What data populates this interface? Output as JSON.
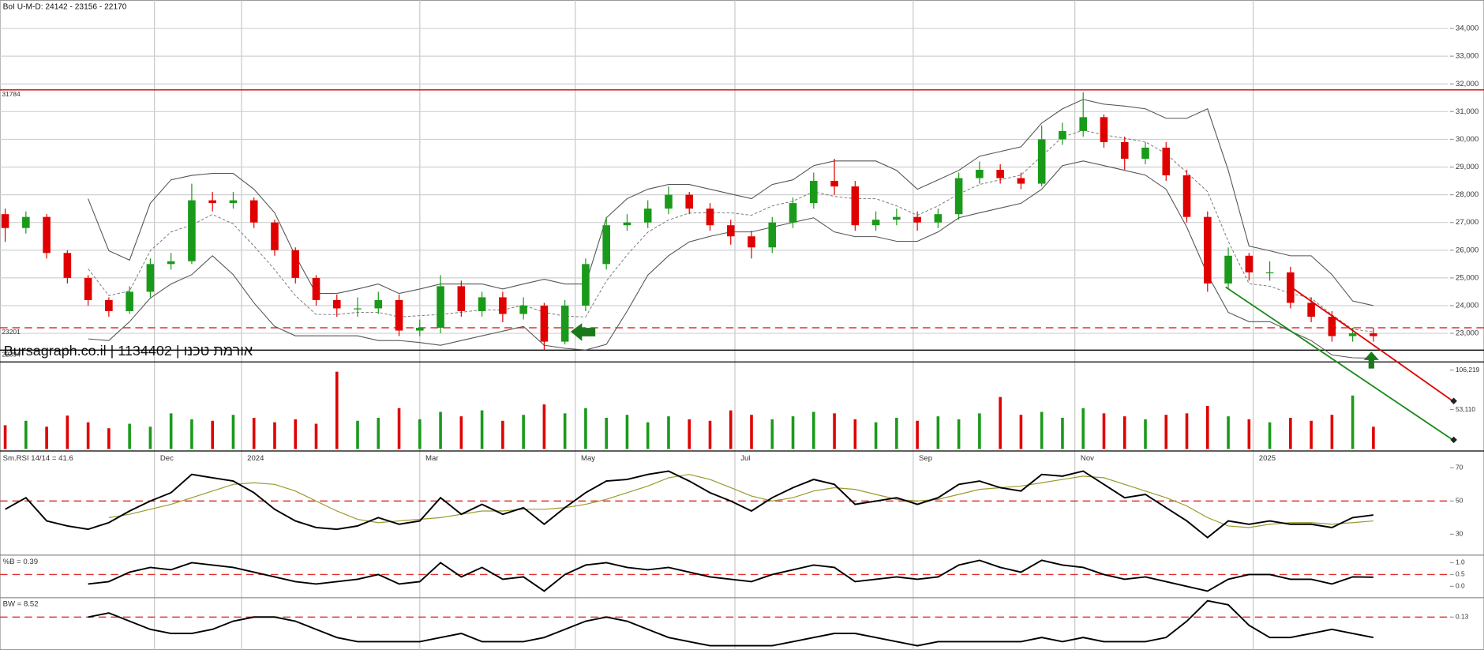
{
  "chart_data": [
    {
      "type": "candlestick",
      "title": "BoI U-M-D: 24142 - 23156 - 22170",
      "watermark": "Bursagraph.co.il | 1134402 | אורמת טכנו",
      "up_color": "#1a9a1a",
      "down_color": "#e00000",
      "open": [
        27300,
        26800,
        27200,
        25900,
        25000,
        24200,
        23800,
        24500,
        25500,
        25600,
        27800,
        27700,
        27800,
        27000,
        26000,
        25000,
        24200,
        23900,
        23900,
        24200,
        23100,
        23200,
        24700,
        23800,
        24300,
        23700,
        24000,
        22700,
        24000,
        25500,
        26900,
        27000,
        27500,
        28000,
        27500,
        26900,
        26500,
        26100,
        27000,
        27700,
        28500,
        28300,
        26900,
        27100,
        27200,
        27000,
        27300,
        28600,
        28900,
        28600,
        28400,
        30000,
        30300,
        30800,
        29900,
        29300,
        29700,
        28700,
        27200,
        24800,
        25800,
        25200,
        25200,
        24100,
        23600,
        22900,
        23000
      ],
      "high": [
        27500,
        27400,
        27300,
        26000,
        25100,
        24300,
        24700,
        25700,
        25900,
        28400,
        28100,
        28100,
        27900,
        27100,
        26100,
        25100,
        24400,
        24300,
        24500,
        24400,
        23500,
        25100,
        24900,
        24500,
        24500,
        24300,
        24100,
        24200,
        25700,
        27200,
        27300,
        27800,
        28300,
        28100,
        27700,
        27100,
        26700,
        27200,
        27900,
        28800,
        29300,
        28500,
        27400,
        27500,
        27400,
        27500,
        28800,
        29200,
        29100,
        28800,
        30500,
        30600,
        31700,
        30900,
        30100,
        29900,
        29900,
        28900,
        27400,
        26100,
        25900,
        25600,
        25400,
        24300,
        23800,
        23200,
        23200
      ],
      "low": [
        26300,
        26600,
        25700,
        24800,
        24000,
        23600,
        23700,
        24300,
        25300,
        25500,
        27400,
        27500,
        26800,
        25800,
        24800,
        24000,
        23600,
        23600,
        23700,
        22900,
        22900,
        23000,
        23600,
        23600,
        23400,
        23500,
        22400,
        22600,
        23800,
        25300,
        26700,
        26800,
        27300,
        27300,
        26700,
        26200,
        25700,
        25900,
        26800,
        27500,
        28000,
        26700,
        26700,
        26900,
        26700,
        26800,
        27100,
        28400,
        28400,
        28200,
        28300,
        29800,
        30100,
        29700,
        28900,
        29100,
        28500,
        27000,
        24500,
        24600,
        24900,
        24900,
        23900,
        23400,
        22700,
        22700,
        22700
      ],
      "close": [
        26800,
        27200,
        25900,
        25000,
        24200,
        23800,
        24500,
        25500,
        25600,
        27800,
        27700,
        27800,
        27000,
        26000,
        25000,
        24200,
        23900,
        23900,
        24200,
        23100,
        23200,
        24700,
        23800,
        24300,
        23700,
        24000,
        22700,
        24000,
        25500,
        26900,
        27000,
        27500,
        28000,
        27500,
        26900,
        26500,
        26100,
        27000,
        27700,
        28500,
        28300,
        26900,
        27100,
        27200,
        27000,
        27300,
        28600,
        28900,
        28600,
        28400,
        30000,
        30300,
        30800,
        29900,
        29300,
        29700,
        28700,
        27200,
        24800,
        25800,
        25200,
        25200,
        24100,
        23600,
        22900,
        23000,
        22900
      ],
      "bands": {
        "upper": [
          null,
          null,
          null,
          null,
          27860,
          25980,
          25640,
          27690,
          28540,
          28700,
          28770,
          28770,
          28200,
          27350,
          25800,
          24440,
          24440,
          24600,
          24780,
          24440,
          24600,
          24780,
          24780,
          24780,
          24600,
          24780,
          24950,
          24780,
          24780,
          27170,
          27860,
          28200,
          28370,
          28370,
          28200,
          28030,
          27860,
          28370,
          28540,
          29050,
          29220,
          29220,
          29220,
          28880,
          28200,
          28540,
          28880,
          29390,
          29560,
          29730,
          30590,
          31100,
          31440,
          31270,
          31200,
          31100,
          30760,
          30760,
          31100,
          28880,
          26150,
          25980,
          25800,
          25800,
          25120,
          24170,
          24000
        ],
        "middle": [
          null,
          null,
          null,
          null,
          25330,
          24360,
          24530,
          25980,
          26660,
          26910,
          27290,
          26950,
          26150,
          25300,
          24360,
          23680,
          23680,
          23760,
          23760,
          23590,
          23640,
          23680,
          23760,
          23850,
          23840,
          24020,
          23760,
          23620,
          23590,
          24890,
          25830,
          26650,
          27090,
          27340,
          27350,
          27350,
          27260,
          27600,
          27770,
          28110,
          27940,
          27860,
          27860,
          27600,
          27260,
          27600,
          28030,
          28370,
          28540,
          28710,
          29400,
          30080,
          30330,
          30160,
          30040,
          29910,
          29480,
          28800,
          28110,
          26320,
          24790,
          24700,
          24440,
          24270,
          23670,
          23150,
          23050
        ],
        "lower": [
          null,
          null,
          null,
          null,
          22800,
          22740,
          23420,
          24270,
          24780,
          25120,
          25800,
          25120,
          24100,
          23250,
          22910,
          22910,
          22910,
          22910,
          22740,
          22740,
          22670,
          22570,
          22740,
          22910,
          23080,
          23250,
          22570,
          22460,
          22400,
          22600,
          23800,
          25100,
          25800,
          26300,
          26500,
          26660,
          26660,
          26830,
          27000,
          27170,
          26660,
          26490,
          26490,
          26320,
          26320,
          26660,
          27170,
          27350,
          27520,
          27690,
          28200,
          29050,
          29220,
          29050,
          28880,
          28710,
          28200,
          26830,
          25120,
          23760,
          23420,
          23420,
          23080,
          22740,
          22220,
          22120,
          22100
        ]
      },
      "hlines": [
        {
          "value": 31784,
          "color": "#d00000",
          "dash": false
        },
        {
          "value": 23201,
          "color": "#e03030",
          "dash": true
        },
        {
          "value": 22394,
          "color": "#000000",
          "dash": false
        }
      ],
      "xlim": [
        -0.25,
        69.6
      ],
      "xticks": [
        {
          "value": 7.2,
          "label": "Dec"
        },
        {
          "value": 11.4,
          "label": "2024"
        },
        {
          "value": 20.0,
          "label": "Mar"
        },
        {
          "value": 27.5,
          "label": "May"
        },
        {
          "value": 35.2,
          "label": "Jul"
        },
        {
          "value": 43.8,
          "label": "Sep"
        },
        {
          "value": 51.6,
          "label": "Nov"
        },
        {
          "value": 60.2,
          "label": "2025"
        }
      ],
      "ylim": [
        21900,
        35020
      ],
      "yticks": [
        {
          "value": 23000,
          "label": "23,000"
        },
        {
          "value": 24000,
          "label": "24,000"
        },
        {
          "value": 25000,
          "label": "25,000"
        },
        {
          "value": 26000,
          "label": "26,000"
        },
        {
          "value": 27000,
          "label": "27,000"
        },
        {
          "value": 28000,
          "label": "28,000"
        },
        {
          "value": 29000,
          "label": "29,000"
        },
        {
          "value": 30000,
          "label": "30,000"
        },
        {
          "value": 31000,
          "label": "31,000"
        },
        {
          "value": 32000,
          "label": "32,000"
        },
        {
          "value": 33000,
          "label": "33,000"
        },
        {
          "value": 34000,
          "label": "34,000"
        }
      ],
      "grid": true
    },
    {
      "type": "bar",
      "values": [
        32000,
        38000,
        30000,
        45000,
        36000,
        28000,
        34000,
        30000,
        48000,
        40000,
        38000,
        46000,
        42000,
        36000,
        40000,
        34000,
        104000,
        38000,
        42000,
        55000,
        40000,
        50000,
        44000,
        52000,
        38000,
        46000,
        60000,
        48000,
        55000,
        42000,
        46000,
        36000,
        44000,
        40000,
        38000,
        52000,
        46000,
        40000,
        44000,
        50000,
        48000,
        40000,
        36000,
        42000,
        38000,
        44000,
        40000,
        48000,
        70000,
        46000,
        50000,
        42000,
        55000,
        48000,
        44000,
        40000,
        46000,
        48000,
        58000,
        44000,
        40000,
        36000,
        42000,
        38000,
        46000,
        72000,
        30000
      ],
      "ylim": [
        0,
        114600
      ],
      "yticks": [
        {
          "value": 53110,
          "label": "53,110"
        },
        {
          "value": 106219,
          "label": "106,219"
        }
      ]
    },
    {
      "type": "line",
      "title": "Sm.RSI 14/14 = 41.6",
      "color": "#000000",
      "signal_color": "#9a9a30",
      "values": [
        45,
        52,
        38,
        35,
        33,
        37,
        44,
        50,
        55,
        66,
        64,
        62,
        55,
        45,
        38,
        34,
        33,
        35,
        40,
        36,
        38,
        52,
        42,
        48,
        42,
        46,
        36,
        46,
        55,
        62,
        63,
        66,
        68,
        62,
        55,
        50,
        44,
        52,
        58,
        63,
        60,
        48,
        50,
        52,
        48,
        52,
        60,
        62,
        58,
        56,
        66,
        65,
        68,
        60,
        52,
        54,
        46,
        38,
        28,
        38,
        36,
        38,
        36,
        36,
        34,
        40,
        41.6
      ],
      "signal": [
        null,
        null,
        null,
        null,
        null,
        40,
        42,
        45,
        48,
        52,
        56,
        60,
        61,
        60,
        56,
        50,
        44,
        39,
        37,
        38,
        39,
        40,
        42,
        44,
        44,
        45,
        45,
        46,
        48,
        51,
        55,
        59,
        64,
        66,
        63,
        58,
        53,
        50,
        52,
        56,
        58,
        57,
        54,
        51,
        50,
        51,
        54,
        57,
        58,
        59,
        61,
        63,
        65,
        64,
        60,
        56,
        52,
        47,
        40,
        35,
        34,
        36,
        37,
        37,
        36,
        37,
        38
      ],
      "ylim": [
        18,
        79
      ],
      "yticks": [
        30,
        50,
        70
      ]
    },
    {
      "type": "line",
      "title": "%B = 0.39",
      "color": "#000000",
      "values": [
        null,
        null,
        null,
        null,
        0.1,
        0.2,
        0.6,
        0.8,
        0.7,
        1.0,
        0.9,
        0.8,
        0.6,
        0.4,
        0.2,
        0.1,
        0.2,
        0.3,
        0.5,
        0.1,
        0.2,
        1.0,
        0.4,
        0.8,
        0.3,
        0.4,
        -0.2,
        0.5,
        0.9,
        1.0,
        0.8,
        0.7,
        0.8,
        0.6,
        0.4,
        0.3,
        0.2,
        0.5,
        0.7,
        0.9,
        0.8,
        0.2,
        0.3,
        0.4,
        0.3,
        0.4,
        0.9,
        1.1,
        0.8,
        0.6,
        1.1,
        0.9,
        0.8,
        0.5,
        0.3,
        0.4,
        0.2,
        0.0,
        -0.2,
        0.3,
        0.5,
        0.5,
        0.3,
        0.3,
        0.1,
        0.4,
        0.39
      ],
      "ylim": [
        -0.44,
        1.28
      ],
      "yticks": [
        {
          "value": 0,
          "label": "0.0"
        },
        0.5,
        {
          "value": 1,
          "label": "1.0"
        }
      ]
    },
    {
      "type": "line",
      "title": "BW = 8.52",
      "color": "#000000",
      "values": [
        null,
        null,
        null,
        null,
        0.13,
        0.14,
        0.12,
        0.1,
        0.09,
        0.09,
        0.1,
        0.12,
        0.13,
        0.13,
        0.12,
        0.1,
        0.08,
        0.07,
        0.07,
        0.07,
        0.07,
        0.08,
        0.09,
        0.07,
        0.07,
        0.07,
        0.08,
        0.1,
        0.12,
        0.13,
        0.12,
        0.1,
        0.08,
        0.07,
        0.06,
        0.06,
        0.06,
        0.06,
        0.07,
        0.08,
        0.09,
        0.09,
        0.08,
        0.07,
        0.06,
        0.07,
        0.07,
        0.07,
        0.07,
        0.07,
        0.08,
        0.07,
        0.08,
        0.07,
        0.07,
        0.07,
        0.08,
        0.12,
        0.17,
        0.16,
        0.11,
        0.08,
        0.08,
        0.09,
        0.1,
        0.09,
        0.08
      ],
      "ylim": [
        0.05,
        0.175
      ],
      "yticks": [
        0.13
      ]
    }
  ]
}
